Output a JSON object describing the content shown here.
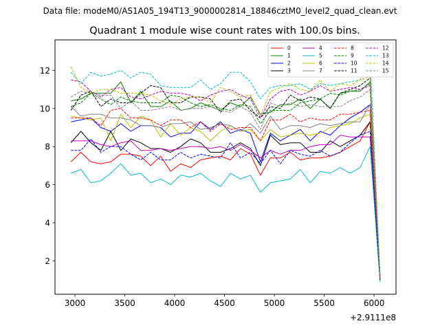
{
  "figure": {
    "supertitle": "Data file: modeM0/AS1A05_194T13_9000002814_18846cztM0_level2_quad_clean.evt",
    "title": "Quadrant 1 module wise count rates with 100.0s bins.",
    "x_offset_label": "+2.9111e8"
  },
  "chart_data": {
    "type": "line",
    "title": "Quadrant 1 module wise count rates with 100.0s bins.",
    "xlabel": "",
    "ylabel": "",
    "x_offset": 291110000,
    "xlim": [
      2800,
      6220
    ],
    "ylim": [
      0.25,
      13.6
    ],
    "xticks": [
      3000,
      3500,
      4000,
      4500,
      5000,
      5500,
      6000
    ],
    "yticks": [
      2,
      4,
      6,
      8,
      10,
      12
    ],
    "xtick_labels": [
      "3000",
      "3500",
      "4000",
      "4500",
      "5000",
      "5500",
      "6000"
    ],
    "ytick_labels": [
      "2",
      "4",
      "6",
      "8",
      "10",
      "12"
    ],
    "legend_position": "upper right",
    "legend_ncol": 4,
    "grid": false,
    "x": [
      2960,
      3060,
      3160,
      3260,
      3360,
      3460,
      3560,
      3660,
      3760,
      3860,
      3960,
      4060,
      4160,
      4260,
      4360,
      4460,
      4560,
      4660,
      4760,
      4860,
      4960,
      5060,
      5160,
      5260,
      5360,
      5460,
      5560,
      5660,
      5760,
      5860,
      5960,
      6060
    ],
    "series": [
      {
        "name": "0",
        "color": "#ff0000",
        "dash": "solid",
        "values": [
          7.2,
          7.7,
          7.2,
          7.1,
          7.2,
          7.6,
          7.6,
          7.5,
          7.0,
          7.5,
          6.7,
          7.1,
          6.9,
          7.3,
          7.4,
          7.5,
          7.3,
          7.9,
          7.6,
          6.5,
          7.4,
          7.4,
          7.7,
          7.3,
          7.4,
          7.4,
          7.5,
          7.7,
          8.0,
          8.3,
          9.3,
          1.1
        ]
      },
      {
        "name": "1",
        "color": "#008000",
        "dash": "solid",
        "values": [
          10.4,
          10.5,
          10.8,
          10.8,
          10.8,
          11.4,
          10.3,
          10.9,
          10.1,
          10.1,
          10.4,
          9.9,
          10.0,
          10.3,
          10.1,
          9.9,
          10.3,
          10.1,
          10.6,
          9.7,
          9.8,
          10.2,
          10.2,
          10.5,
          10.0,
          10.5,
          10.0,
          10.8,
          10.9,
          10.9,
          11.4,
          1.2
        ]
      },
      {
        "name": "2",
        "color": "#0000ff",
        "dash": "solid",
        "values": [
          9.3,
          9.4,
          9.5,
          9.0,
          8.8,
          9.2,
          8.8,
          9.1,
          9.1,
          9.0,
          8.5,
          8.7,
          8.7,
          9.3,
          8.9,
          9.3,
          8.7,
          8.9,
          8.7,
          7.2,
          8.7,
          8.3,
          8.6,
          8.9,
          8.3,
          8.8,
          8.6,
          9.1,
          9.5,
          9.8,
          10.2,
          1.0
        ]
      },
      {
        "name": "3",
        "color": "#000000",
        "dash": "solid",
        "values": [
          8.2,
          8.8,
          8.2,
          7.8,
          8.8,
          7.8,
          8.4,
          8.2,
          7.9,
          7.9,
          7.7,
          8.0,
          8.4,
          8.2,
          7.7,
          7.7,
          7.9,
          8.2,
          7.9,
          7.0,
          8.6,
          8.1,
          8.2,
          8.2,
          7.7,
          7.7,
          8.3,
          8.0,
          8.3,
          8.6,
          9.3,
          1.1
        ]
      },
      {
        "name": "4",
        "color": "#bf00bf",
        "dash": "solid",
        "values": [
          8.3,
          8.3,
          8.3,
          8.1,
          8.0,
          8.2,
          8.3,
          7.8,
          7.8,
          7.9,
          7.8,
          7.9,
          8.0,
          8.0,
          7.9,
          8.0,
          7.8,
          8.1,
          7.8,
          7.4,
          7.8,
          7.6,
          7.8,
          7.8,
          8.0,
          8.1,
          8.1,
          8.6,
          8.5,
          8.5,
          8.5,
          1.0
        ]
      },
      {
        "name": "5",
        "color": "#00bfbf",
        "dash": "solid",
        "values": [
          6.6,
          6.8,
          6.1,
          6.2,
          6.6,
          7.1,
          6.5,
          6.6,
          6.1,
          6.3,
          6.0,
          6.5,
          6.4,
          6.6,
          6.2,
          5.9,
          6.6,
          6.3,
          6.5,
          5.6,
          6.1,
          6.2,
          6.3,
          6.8,
          6.1,
          6.7,
          6.6,
          6.9,
          6.6,
          6.9,
          8.0,
          0.9
        ]
      },
      {
        "name": "6",
        "color": "#bfbf00",
        "dash": "solid",
        "values": [
          9.6,
          9.5,
          9.4,
          9.5,
          8.3,
          9.7,
          9.0,
          9.6,
          9.4,
          8.5,
          9.2,
          8.6,
          9.0,
          8.8,
          8.3,
          8.8,
          9.1,
          8.8,
          8.9,
          8.3,
          8.9,
          8.5,
          8.6,
          8.7,
          8.6,
          8.7,
          9.0,
          9.1,
          9.2,
          9.5,
          9.7,
          1.1
        ]
      },
      {
        "name": "7",
        "color": "#808080",
        "dash": "solid",
        "values": [
          10.1,
          9.6,
          9.7,
          9.7,
          9.5,
          9.5,
          9.4,
          9.1,
          9.1,
          9.0,
          9.2,
          9.2,
          9.3,
          8.9,
          9.0,
          9.2,
          9.1,
          8.8,
          9.2,
          8.7,
          9.6,
          8.9,
          9.1,
          9.1,
          9.0,
          9.2,
          9.1,
          9.2,
          9.3,
          9.3,
          10.2,
          1.2
        ]
      },
      {
        "name": "8",
        "color": "#ff0000",
        "dash": "dashed",
        "values": [
          9.5,
          9.5,
          9.5,
          9.1,
          9.9,
          10.0,
          9.5,
          9.5,
          9.4,
          9.1,
          9.4,
          9.4,
          9.0,
          9.3,
          8.8,
          9.2,
          8.9,
          9.0,
          9.0,
          8.3,
          9.4,
          9.4,
          9.7,
          9.3,
          9.5,
          9.4,
          9.4,
          9.7,
          9.7,
          9.8,
          9.9,
          1.1
        ]
      },
      {
        "name": "9",
        "color": "#008000",
        "dash": "dashed",
        "values": [
          10.1,
          10.3,
          10.8,
          10.5,
          10.2,
          10.6,
          10.4,
          10.3,
          10.3,
          10.3,
          10.7,
          10.6,
          10.3,
          10.1,
          10.2,
          10.0,
          9.9,
          10.2,
          10.1,
          9.2,
          9.9,
          9.9,
          9.9,
          10.3,
          10.4,
          10.5,
          10.8,
          10.7,
          10.9,
          11.0,
          11.3,
          1.1
        ]
      },
      {
        "name": "10",
        "color": "#0000ff",
        "dash": "dashed",
        "values": [
          7.8,
          7.8,
          8.4,
          7.7,
          8.0,
          8.0,
          7.6,
          7.3,
          7.7,
          7.3,
          7.3,
          7.7,
          7.4,
          7.6,
          7.5,
          7.4,
          8.2,
          7.4,
          7.7,
          7.1,
          7.8,
          7.1,
          7.8,
          7.6,
          7.5,
          7.8,
          7.5,
          7.7,
          8.2,
          8.6,
          8.8,
          1.0
        ]
      },
      {
        "name": "11",
        "color": "#000000",
        "dash": "dashed",
        "values": [
          9.9,
          10.7,
          10.9,
          10.1,
          10.5,
          10.3,
          10.3,
          10.8,
          11.2,
          11.1,
          10.3,
          10.3,
          10.6,
          10.6,
          10.5,
          9.8,
          10.4,
          10.5,
          9.9,
          9.5,
          10.1,
          10.0,
          10.7,
          10.4,
          10.6,
          10.5,
          10.0,
          10.8,
          11.0,
          11.2,
          11.6,
          1.2
        ]
      },
      {
        "name": "12",
        "color": "#bf00bf",
        "dash": "dashed",
        "values": [
          11.5,
          11.4,
          10.9,
          10.6,
          11.0,
          11.1,
          10.6,
          10.5,
          10.7,
          10.9,
          10.8,
          10.8,
          10.7,
          10.4,
          10.7,
          10.9,
          11.0,
          10.7,
          10.5,
          9.5,
          10.5,
          10.9,
          11.0,
          10.7,
          10.9,
          11.2,
          10.9,
          11.0,
          11.1,
          11.0,
          11.2,
          1.2
        ]
      },
      {
        "name": "13",
        "color": "#00bfbf",
        "dash": "dashed",
        "values": [
          11.9,
          11.3,
          11.9,
          11.7,
          11.8,
          12.0,
          11.6,
          11.9,
          11.8,
          11.2,
          11.1,
          11.1,
          11.1,
          11.5,
          11.0,
          11.3,
          11.9,
          11.9,
          11.4,
          10.5,
          11.1,
          11.2,
          11.2,
          11.3,
          11.0,
          11.3,
          11.2,
          11.3,
          11.4,
          11.5,
          12.8,
          1.3
        ]
      },
      {
        "name": "14",
        "color": "#bfbf00",
        "dash": "dashed",
        "values": [
          12.2,
          11.1,
          10.8,
          11.0,
          11.0,
          10.8,
          10.8,
          10.8,
          10.7,
          10.4,
          10.2,
          10.5,
          10.6,
          10.6,
          10.3,
          11.1,
          10.9,
          10.6,
          10.7,
          9.6,
          10.9,
          11.1,
          11.3,
          11.0,
          10.9,
          11.5,
          10.9,
          11.3,
          11.2,
          11.5,
          11.7,
          1.2
        ]
      },
      {
        "name": "15",
        "color": "#808080",
        "dash": "dashed",
        "values": [
          10.6,
          10.9,
          10.8,
          10.7,
          10.7,
          10.0,
          10.4,
          9.9,
          9.9,
          10.0,
          10.1,
          9.9,
          10.0,
          10.0,
          10.1,
          9.9,
          9.8,
          10.1,
          9.8,
          8.9,
          10.3,
          10.1,
          10.3,
          10.1,
          10.2,
          10.1,
          10.1,
          10.1,
          10.4,
          10.6,
          11.0,
          1.1
        ]
      }
    ]
  }
}
